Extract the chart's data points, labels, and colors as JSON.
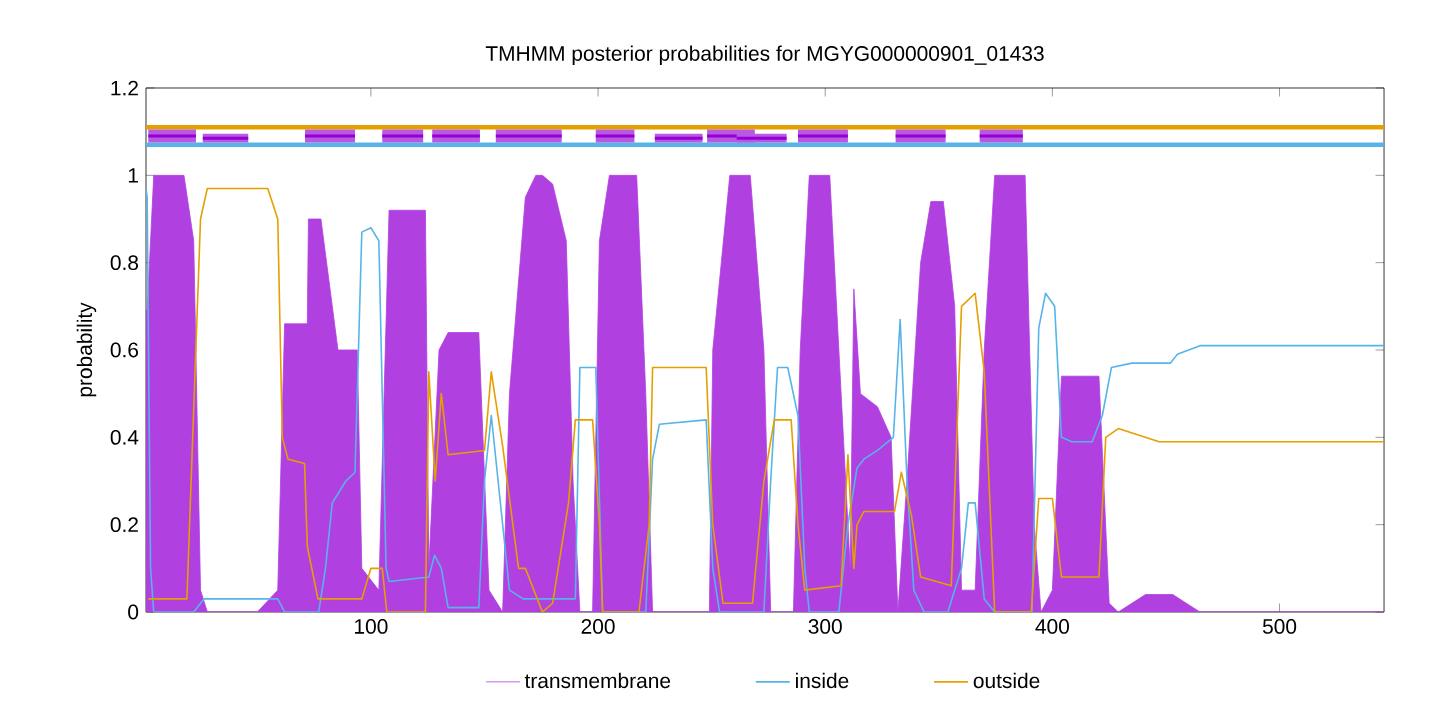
{
  "chart_data": {
    "type": "line",
    "title": "TMHMM posterior probabilities for MGYG000000901_01433",
    "ylabel": "probability",
    "xlim": [
      1,
      546
    ],
    "xticks": [
      100,
      200,
      300,
      400,
      500
    ],
    "ylim": [
      0,
      1.2
    ],
    "yticks": [
      0,
      0.2,
      0.4,
      0.6,
      0.8,
      1,
      1.2
    ],
    "legend": "bottom",
    "series": [
      {
        "name": "transmembrane",
        "type": "area",
        "color": "#b040e0",
        "x": [
          1,
          1.5,
          4.4,
          17.7,
          22,
          25,
          28,
          50,
          59,
          62,
          72,
          72.5,
          78,
          85.5,
          94,
          96,
          103.5,
          108,
          124,
          125.5,
          130,
          134,
          147.5,
          152,
          158,
          161,
          168,
          172.6,
          175.5,
          180,
          186,
          189,
          192,
          197.6,
          200.6,
          205,
          217,
          221,
          224,
          249,
          250.5,
          258,
          267,
          273,
          276,
          286,
          289,
          293,
          302,
          308,
          311,
          312.6,
          315.5,
          323,
          329,
          332,
          336,
          342,
          346.5,
          352,
          357,
          360,
          366,
          370,
          374.6,
          388,
          392,
          395,
          400,
          404,
          420.5,
          425,
          429,
          435,
          441,
          453,
          462,
          465,
          546
        ],
        "values": [
          0.69,
          0.69,
          1.0,
          1.0,
          0.85,
          0.05,
          0,
          0,
          0.05,
          0.66,
          0.66,
          0.9,
          0.9,
          0.6,
          0.6,
          0.1,
          0.05,
          0.92,
          0.92,
          0.1,
          0.6,
          0.64,
          0.64,
          0.05,
          0,
          0.5,
          0.95,
          1.0,
          1.0,
          0.98,
          0.85,
          0.3,
          0,
          0,
          0.85,
          1.0,
          1.0,
          0.5,
          0,
          0,
          0.6,
          1.0,
          1.0,
          0.6,
          0,
          0,
          0.6,
          1.0,
          1.0,
          0.4,
          0.1,
          0.74,
          0.5,
          0.47,
          0.4,
          0,
          0.3,
          0.8,
          0.94,
          0.94,
          0.7,
          0.05,
          0.05,
          0.6,
          1.0,
          1.0,
          0.2,
          0,
          0.05,
          0.54,
          0.54,
          0.02,
          0,
          0.02,
          0.04,
          0.04,
          0.01,
          0,
          0
        ]
      },
      {
        "name": "inside",
        "color": "#56b4e9",
        "x": [
          1,
          1.5,
          3,
          4.4,
          22,
          26.5,
          59,
          62,
          77,
          80,
          83,
          89,
          93,
          96,
          100,
          103.5,
          106.7,
          108,
          125.5,
          128,
          131,
          134,
          147.5,
          150,
          153,
          156,
          161,
          167,
          190,
          192,
          199,
          202,
          221,
          224,
          227,
          247.6,
          250.5,
          253.5,
          273,
          276,
          279,
          283.5,
          288,
          291,
          293,
          306,
          310,
          314,
          317,
          323,
          330,
          333,
          336,
          339,
          343.5,
          354,
          360,
          363,
          366,
          370,
          374.6,
          391,
          394,
          397,
          401,
          404,
          408.6,
          417.5,
          422,
          426,
          435,
          452,
          455,
          465,
          546
        ],
        "values": [
          0.97,
          0.95,
          0.1,
          0,
          0,
          0.03,
          0.03,
          0,
          0,
          0.1,
          0.25,
          0.3,
          0.32,
          0.87,
          0.88,
          0.85,
          0.1,
          0.07,
          0.08,
          0.13,
          0.1,
          0.01,
          0.01,
          0.3,
          0.45,
          0.3,
          0.05,
          0.03,
          0.03,
          0.56,
          0.56,
          0,
          0,
          0.35,
          0.43,
          0.44,
          0.1,
          0,
          0,
          0.3,
          0.56,
          0.56,
          0.45,
          0.1,
          0,
          0,
          0.2,
          0.33,
          0.35,
          0.37,
          0.4,
          0.67,
          0.3,
          0.05,
          0,
          0,
          0.1,
          0.25,
          0.25,
          0.03,
          0,
          0,
          0.65,
          0.73,
          0.7,
          0.4,
          0.39,
          0.39,
          0.45,
          0.56,
          0.57,
          0.57,
          0.59,
          0.61,
          0.61
        ]
      },
      {
        "name": "outside",
        "color": "#e69f00",
        "x": [
          2,
          19,
          25,
          28,
          54.6,
          59,
          61,
          63.5,
          70.8,
          72,
          76.7,
          96,
          100,
          105,
          107,
          124,
          125.5,
          128.3,
          131,
          134,
          150,
          153,
          158,
          165,
          168,
          175.5,
          180,
          187,
          190,
          197.6,
          200.6,
          202,
          218,
          222.5,
          224,
          247.6,
          250.5,
          255,
          268,
          273,
          277.6,
          285,
          288,
          291,
          307,
          310,
          312.6,
          314,
          317,
          330.5,
          333.5,
          338,
          342,
          355.5,
          360,
          366,
          370,
          374.6,
          390.7,
          394,
          400,
          404,
          420.5,
          423.5,
          429,
          447,
          465,
          546
        ],
        "values": [
          0.03,
          0.03,
          0.9,
          0.97,
          0.97,
          0.9,
          0.4,
          0.35,
          0.34,
          0.15,
          0.03,
          0.03,
          0.1,
          0.1,
          0,
          0,
          0.55,
          0.3,
          0.5,
          0.36,
          0.37,
          0.55,
          0.38,
          0.1,
          0.1,
          0,
          0.02,
          0.25,
          0.44,
          0.44,
          0.2,
          0,
          0,
          0.2,
          0.56,
          0.56,
          0.2,
          0.02,
          0.02,
          0.3,
          0.44,
          0.44,
          0.2,
          0.05,
          0.06,
          0.36,
          0.1,
          0.2,
          0.23,
          0.23,
          0.32,
          0.22,
          0.08,
          0.06,
          0.7,
          0.73,
          0.55,
          0,
          0,
          0.26,
          0.26,
          0.08,
          0.08,
          0.4,
          0.42,
          0.39,
          0.39,
          0.39
        ]
      },
      {
        "color": "#e69f00",
        "x": [
          1,
          546
        ],
        "values": [
          1.11,
          1.11
        ]
      },
      {
        "color": "#56b4e9",
        "x": [
          1,
          546
        ],
        "values": [
          1.07,
          1.07
        ]
      },
      {
        "type": "line",
        "color": "#9400d3",
        "x": [
          2,
          23,
          24.5,
          26,
          46,
          58,
          71,
          93,
          99,
          105,
          123,
          125,
          127,
          148,
          151,
          155,
          184,
          191,
          199,
          216,
          220,
          225,
          246,
          247,
          248,
          269,
          265,
          261,
          283,
          285,
          288,
          310,
          320,
          331,
          353,
          360,
          368,
          387
        ],
        "values": [
          1.09,
          1.09,
          null,
          1.085,
          1.085,
          null,
          1.09,
          1.09,
          null,
          1.09,
          1.09,
          null,
          1.09,
          1.09,
          null,
          1.09,
          1.09,
          null,
          1.09,
          1.09,
          null,
          1.085,
          1.085,
          null,
          1.09,
          1.09,
          null,
          1.085,
          1.085,
          null,
          1.09,
          1.09,
          null,
          1.09,
          1.09,
          null,
          1.09,
          1.09
        ],
        "lower": [
          1.075,
          1.075,
          null,
          1.075,
          1.075,
          null,
          1.075,
          1.075,
          null,
          1.075,
          1.075,
          null,
          1.075,
          1.075,
          null,
          1.075,
          1.075,
          null,
          1.075,
          1.075,
          null,
          1.075,
          1.075,
          null,
          1.075,
          1.075,
          null,
          1.075,
          1.075,
          null,
          1.075,
          1.075,
          null,
          1.075,
          1.075,
          null,
          1.075,
          1.075
        ],
        "upper": [
          1.105,
          1.105,
          null,
          1.095,
          1.095,
          null,
          1.105,
          1.105,
          null,
          1.105,
          1.105,
          null,
          1.105,
          1.105,
          null,
          1.105,
          1.105,
          null,
          1.105,
          1.105,
          null,
          1.095,
          1.095,
          null,
          1.105,
          1.105,
          null,
          1.095,
          1.095,
          null,
          1.105,
          1.105,
          null,
          1.105,
          1.105,
          null,
          1.105,
          1.105
        ]
      }
    ]
  }
}
